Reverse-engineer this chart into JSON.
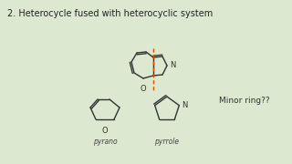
{
  "background_color": "#dce8d0",
  "title": "2. Heterocycle fused with heterocyclic system",
  "title_fontsize": 7.0,
  "title_color": "#222222",
  "minor_ring_text": "Minor ring??",
  "minor_ring_fontsize": 6.5,
  "pyrano_label": "pyrano",
  "pyrrole_label": "pyrrole",
  "label_fontsize": 5.5,
  "dashed_line_color": "#cc5500",
  "structure_color": "#333333",
  "line_width": 1.0
}
